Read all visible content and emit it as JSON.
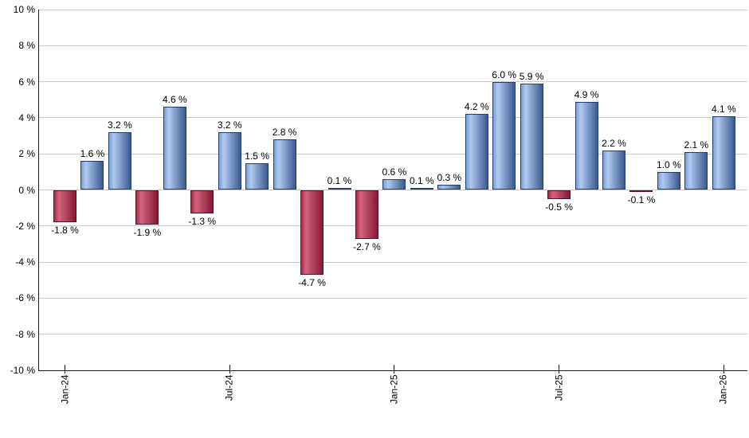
{
  "chart_data": {
    "type": "bar",
    "title": "",
    "unit": "%",
    "ylim": [
      -10,
      10
    ],
    "y_tick_step": 2,
    "grid": true,
    "legend": false,
    "y_ticks": [
      {
        "value": 10,
        "label": "10 %"
      },
      {
        "value": 8,
        "label": "8 %"
      },
      {
        "value": 6,
        "label": "6 %"
      },
      {
        "value": 4,
        "label": "4 %"
      },
      {
        "value": 2,
        "label": "2 %"
      },
      {
        "value": 0,
        "label": "0 %"
      },
      {
        "value": -2,
        "label": "-2 %"
      },
      {
        "value": -4,
        "label": "-4 %"
      },
      {
        "value": -6,
        "label": "-6 %"
      },
      {
        "value": -8,
        "label": "-8 %"
      },
      {
        "value": -10,
        "label": "-10 %"
      }
    ],
    "x_ticks": [
      {
        "bar_index": 0,
        "label": "Jan-24"
      },
      {
        "bar_index": 6,
        "label": "Jul-24"
      },
      {
        "bar_index": 12,
        "label": "Jan-25"
      },
      {
        "bar_index": 18,
        "label": "Jul-25"
      },
      {
        "bar_index": 24,
        "label": "Jan-26"
      }
    ],
    "values": [
      -1.8,
      1.6,
      3.2,
      -1.9,
      4.6,
      -1.3,
      3.2,
      1.5,
      2.8,
      -4.7,
      0.1,
      -2.7,
      0.6,
      0.1,
      0.3,
      4.2,
      6.0,
      5.9,
      -0.5,
      4.9,
      2.2,
      -0.1,
      1.0,
      2.1,
      4.1
    ],
    "value_labels": [
      "-1.8 %",
      "1.6 %",
      "3.2 %",
      "-1.9 %",
      "4.6 %",
      "-1.3 %",
      "3.2 %",
      "1.5 %",
      "2.8 %",
      "-4.7 %",
      "0.1 %",
      "-2.7 %",
      "0.6 %",
      "0.1 %",
      "0.3 %",
      "4.2 %",
      "6.0 %",
      "5.9 %",
      "-0.5 %",
      "4.9 %",
      "2.2 %",
      "-0.1 %",
      "1.0 %",
      "2.1 %",
      "4.1 %"
    ],
    "colors": {
      "positive_gradient": [
        "#7e9fd2",
        "#b0c9f2",
        "#3a598e"
      ],
      "positive_border": "#223f6b",
      "negative_gradient": [
        "#a62949",
        "#d4657f",
        "#871834"
      ],
      "negative_border": "#5c0e26",
      "gridline": "#c9c9c9",
      "axis": "#1a1a1a",
      "label_text": "#000000",
      "background": "#ffffff"
    }
  }
}
